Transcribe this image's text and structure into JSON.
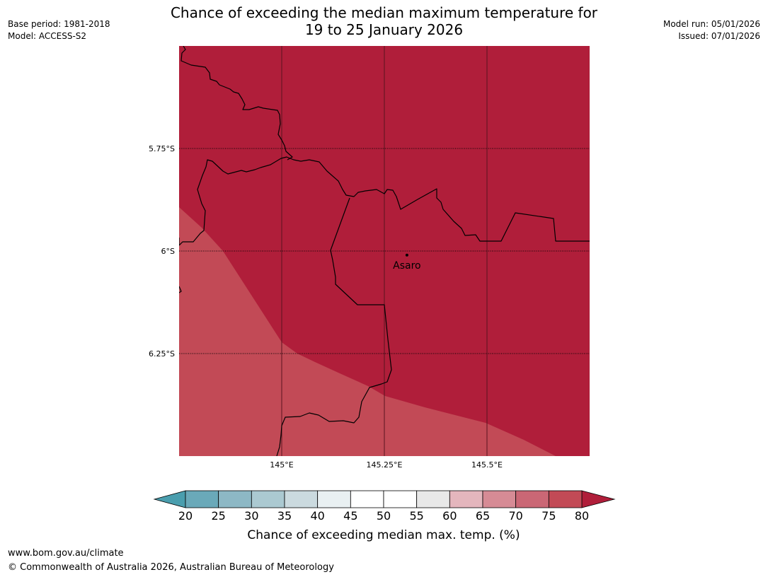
{
  "title": {
    "line1": "Chance of exceeding the median maximum temperature for",
    "line2": "19 to 25 January 2026"
  },
  "meta_left": {
    "base_period": "Base period: 1981-2018",
    "model": "Model: ACCESS-S2"
  },
  "meta_right": {
    "model_run": "Model run: 05/01/2026",
    "issued": "Issued: 07/01/2026"
  },
  "map": {
    "lon_range": [
      144.75,
      145.75
    ],
    "lat_range": [
      -5.5,
      -6.5
    ],
    "lat_ticks": [
      {
        "value": -5.75,
        "label": "5.75°S"
      },
      {
        "value": -6.0,
        "label": "6°S"
      },
      {
        "value": -6.25,
        "label": "6.25°S"
      }
    ],
    "lon_ticks": [
      {
        "value": 145.0,
        "label": "145°E"
      },
      {
        "value": 145.25,
        "label": "145.25°E"
      },
      {
        "value": 145.5,
        "label": "145.5°E"
      }
    ],
    "town": {
      "name": "Asaro",
      "lon": 145.305,
      "lat": -6.01
    },
    "zones": [
      {
        "category": "> 80%",
        "color": "#b01e3a"
      },
      {
        "category": "75–80%",
        "color": "#c24a56"
      }
    ]
  },
  "colorbar": {
    "title": "Chance of exceeding median max. temp. (%)",
    "labels": [
      "20",
      "25",
      "30",
      "35",
      "40",
      "45",
      "50",
      "55",
      "60",
      "65",
      "70",
      "75",
      "80"
    ],
    "colors": [
      "#6aa9b9",
      "#8db8c5",
      "#abc9d1",
      "#cbdadf",
      "#e9f0f2",
      "#ffffff",
      "#ffffff",
      "#e8e8e8",
      "#e4b6bd",
      "#d68b95",
      "#ca6775",
      "#c24a56"
    ],
    "under_color": "#4a9eae",
    "over_color": "#b01e3a"
  },
  "footer": {
    "url": "www.bom.gov.au/climate",
    "copyright": "© Commonwealth of Australia 2026, Australian Bureau of Meteorology"
  }
}
